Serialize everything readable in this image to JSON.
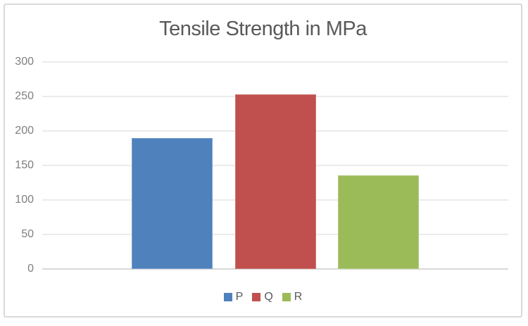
{
  "chart_data": {
    "type": "bar",
    "title": "Tensile Strength in MPa",
    "categories": [
      "P",
      "Q",
      "R"
    ],
    "values": [
      190,
      253,
      136
    ],
    "colors": [
      "#4f81bd",
      "#c0504d",
      "#9bbb59"
    ],
    "bar_border_colors": [
      "#7da2cf",
      "#cd7472",
      "#b1ca7e"
    ],
    "xlabel": "",
    "ylabel": "",
    "ylim": [
      0,
      300
    ],
    "y_ticks": [
      0,
      50,
      100,
      150,
      200,
      250,
      300
    ],
    "grid": true,
    "legend_position": "bottom",
    "legend_entries": [
      "P",
      "Q",
      "R"
    ]
  },
  "styles": {
    "background": "#ffffff",
    "frame_border_color": "#d9d9d9",
    "title_color": "#595959",
    "tick_label_color": "#7f7f7f",
    "gridline_color": "#ebebeb",
    "baseline_color": "#d9d9d9",
    "legend_text_color": "#595959"
  }
}
